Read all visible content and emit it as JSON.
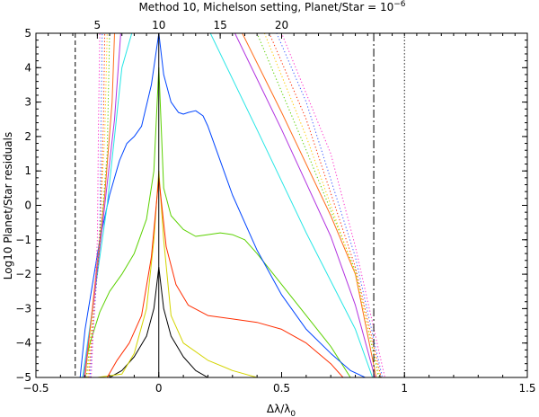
{
  "chart_data": {
    "type": "line",
    "title": "Method 10, Michelson setting, Planet/Star = 10",
    "title_exponent": "−6",
    "xlabel": "Δλ/λ",
    "xlabel_subscript": "0",
    "ylabel": "Log10 Planet/Star residuals",
    "xlim": [
      -0.5,
      1.5
    ],
    "ylim": [
      -5,
      5
    ],
    "x_ticks": [
      -0.5,
      0,
      0.5,
      1,
      1.5
    ],
    "x_tick_labels": [
      "−0.5",
      "0",
      "0.5",
      "1",
      "1.5"
    ],
    "y_ticks": [
      -5,
      -4,
      -3,
      -2,
      -1,
      0,
      1,
      2,
      3,
      4,
      5
    ],
    "y_tick_labels": [
      "−5",
      "−4",
      "−3",
      "−2",
      "−1",
      "0",
      "1",
      "2",
      "3",
      "4",
      "5"
    ],
    "top_axis": {
      "ticks": [
        5,
        10,
        15,
        20
      ],
      "tick_labels": [
        "5",
        "10",
        "15",
        "20"
      ],
      "note": "top tick at value v sits at bottom-axis x = (v - 10) / 20"
    },
    "grid": false,
    "legend": "none",
    "vertical_lines": [
      {
        "x": -0.34,
        "style": "dashed",
        "color": "#000000"
      },
      {
        "x": 0.0,
        "style": "solid",
        "color": "#000000"
      },
      {
        "x": 0.875,
        "style": "dashdot",
        "color": "#000000"
      },
      {
        "x": 1.0,
        "style": "dotted",
        "color": "#000000"
      }
    ],
    "series": [
      {
        "color": "#000000",
        "style": "solid",
        "x": [
          -0.32,
          -0.29,
          -0.25,
          -0.2,
          -0.15,
          -0.1,
          -0.05,
          -0.02,
          0.0,
          0.0,
          0.02,
          0.05,
          0.1,
          0.15,
          0.2,
          0.25
        ],
        "y": [
          -5,
          -5,
          -5,
          -5,
          -4.8,
          -4.4,
          -3.8,
          -3.0,
          -1.8,
          -1.8,
          -3.0,
          -3.8,
          -4.4,
          -4.8,
          -5,
          -5
        ]
      },
      {
        "color": "#d4d400",
        "style": "solid",
        "x": [
          -0.25,
          -0.15,
          -0.1,
          -0.05,
          -0.02,
          0.0,
          0.0,
          0.02,
          0.05,
          0.1,
          0.2,
          0.3,
          0.4
        ],
        "y": [
          -5,
          -4.9,
          -4.3,
          -3.0,
          -1.0,
          1.0,
          1.0,
          -1.0,
          -3.2,
          -4.0,
          -4.5,
          -4.8,
          -5
        ]
      },
      {
        "color": "#ff2d00",
        "style": "solid",
        "x": [
          -0.21,
          -0.17,
          -0.12,
          -0.07,
          -0.03,
          0.0,
          0.0,
          0.03,
          0.07,
          0.12,
          0.2,
          0.3,
          0.4,
          0.5,
          0.6,
          0.7,
          0.75
        ],
        "y": [
          -5,
          -4.5,
          -4.0,
          -3.2,
          -1.5,
          0.8,
          0.8,
          -1.2,
          -2.3,
          -2.9,
          -3.2,
          -3.3,
          -3.4,
          -3.6,
          -4.0,
          -4.6,
          -5
        ]
      },
      {
        "color": "#5bd100",
        "style": "solid",
        "x": [
          -0.31,
          -0.28,
          -0.24,
          -0.2,
          -0.15,
          -0.1,
          -0.05,
          -0.02,
          0.0,
          0.0,
          0.02,
          0.05,
          0.1,
          0.15,
          0.2,
          0.25,
          0.3,
          0.35,
          0.4,
          0.5,
          0.6,
          0.7,
          0.78
        ],
        "y": [
          -5,
          -4.0,
          -3.1,
          -2.5,
          -2.0,
          -1.4,
          -0.4,
          1.0,
          4.0,
          4.0,
          0.5,
          -0.3,
          -0.7,
          -0.9,
          -0.85,
          -0.8,
          -0.85,
          -1.0,
          -1.4,
          -2.3,
          -3.2,
          -4.1,
          -5
        ]
      },
      {
        "color": "#0045ff",
        "style": "solid",
        "x": [
          -0.32,
          -0.3,
          -0.27,
          -0.24,
          -0.2,
          -0.16,
          -0.13,
          -0.1,
          -0.07,
          -0.03,
          0.0,
          0.0,
          0.02,
          0.05,
          0.08,
          0.1,
          0.12,
          0.15,
          0.18,
          0.2,
          0.25,
          0.3,
          0.4,
          0.5,
          0.6,
          0.7,
          0.78,
          0.84
        ],
        "y": [
          -5,
          -3.6,
          -2.3,
          -1.0,
          0.3,
          1.3,
          1.8,
          2.0,
          2.3,
          3.5,
          5.0,
          5.0,
          3.8,
          3.0,
          2.7,
          2.65,
          2.7,
          2.75,
          2.6,
          2.3,
          1.3,
          0.3,
          -1.3,
          -2.6,
          -3.6,
          -4.3,
          -4.8,
          -5.0
        ]
      },
      {
        "color": "#28e6e6",
        "style": "solid",
        "x": [
          -0.31,
          -0.25,
          -0.21,
          -0.18,
          -0.15,
          -0.11,
          0.21,
          0.4,
          0.6,
          0.8,
          0.87
        ],
        "y": [
          -5,
          -2.0,
          0.0,
          2.0,
          4.0,
          5.0,
          5.0,
          2.2,
          -0.8,
          -3.6,
          -5.0
        ]
      },
      {
        "color": "#b233e0",
        "style": "solid",
        "x": [
          -0.305,
          -0.26,
          -0.22,
          -0.18,
          -0.155,
          0.31,
          0.5,
          0.7,
          0.8,
          0.88
        ],
        "y": [
          -5,
          -2.5,
          0.0,
          2.5,
          5.0,
          5.0,
          2.2,
          -0.9,
          -2.9,
          -5.0
        ]
      },
      {
        "color": "#ff6d1b",
        "style": "solid",
        "x": [
          -0.3,
          -0.26,
          -0.22,
          -0.19,
          -0.18,
          0.34,
          0.5,
          0.7,
          0.8,
          0.885
        ],
        "y": [
          -5,
          -2.3,
          0.3,
          3.0,
          5.0,
          5.0,
          2.7,
          -0.3,
          -2.0,
          -5.0
        ]
      },
      {
        "color": "#5bd100",
        "style": "dotted",
        "x": [
          -0.295,
          -0.25,
          -0.21,
          -0.2,
          0.4,
          0.6,
          0.8,
          0.895
        ],
        "y": [
          -5,
          -2.0,
          1.5,
          5.0,
          5.0,
          1.6,
          -1.9,
          -5.0
        ]
      },
      {
        "color": "#ffcc00",
        "style": "dotted",
        "x": [
          -0.29,
          -0.25,
          -0.22,
          -0.21,
          0.43,
          0.6,
          0.8,
          0.9
        ],
        "y": [
          -5,
          -1.8,
          2.0,
          5.0,
          5.0,
          2.0,
          -2.0,
          -5.0
        ]
      },
      {
        "color": "#ff2d00",
        "style": "dotted",
        "x": [
          -0.285,
          -0.24,
          -0.225,
          -0.22,
          0.45,
          0.6,
          0.8,
          0.905
        ],
        "y": [
          -5,
          -1.0,
          2.5,
          5.0,
          5.0,
          2.5,
          -1.8,
          -5.0
        ]
      },
      {
        "color": "#4060ff",
        "style": "dotted",
        "x": [
          -0.28,
          -0.24,
          -0.235,
          -0.23,
          0.48,
          0.6,
          0.8,
          0.91
        ],
        "y": [
          -5,
          -0.8,
          2.5,
          5.0,
          5.0,
          3.0,
          -1.5,
          -5.0
        ]
      },
      {
        "color": "#ff33cc",
        "style": "dotted",
        "x": [
          -0.275,
          -0.25,
          -0.245,
          -0.24,
          0.5,
          0.7,
          0.8,
          0.92
        ],
        "y": [
          -5,
          -1.0,
          2.5,
          5.0,
          5.0,
          1.5,
          -1.2,
          -5.0
        ]
      }
    ]
  }
}
